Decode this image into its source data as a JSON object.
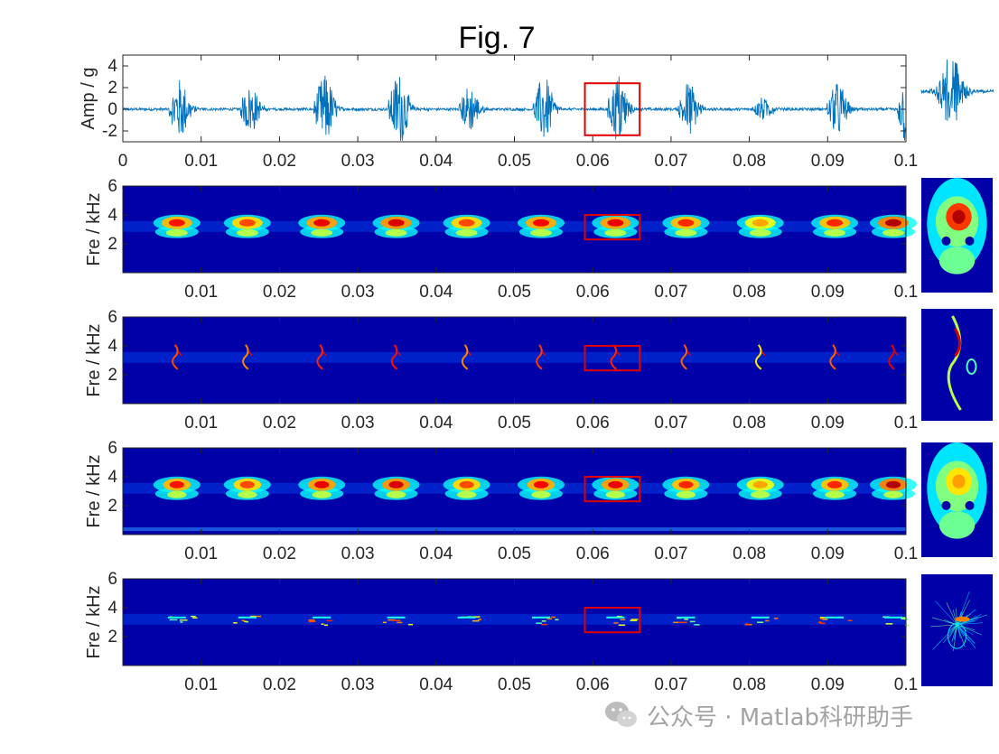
{
  "figure": {
    "title": "Fig. 7",
    "watermark": "公众号 · Matlab科研助手"
  },
  "colors": {
    "signal": "#0072BD",
    "highlight_box": "#E00000",
    "axes": "#262626",
    "background_map": "#0000A8"
  },
  "chart_data": [
    {
      "type": "line",
      "title": "Fig. 7",
      "ylabel": "Amp / g",
      "xlim": [
        0,
        0.1
      ],
      "ylim": [
        -3,
        5
      ],
      "yticks": [
        "-2",
        "0",
        "2",
        "4"
      ],
      "xticks": [
        "0",
        "0.01",
        "0.02",
        "0.03",
        "0.04",
        "0.05",
        "0.06",
        "0.07",
        "0.08",
        "0.09",
        "0.1"
      ],
      "series": [
        {
          "impulse_times": [
            0.0065,
            0.0155,
            0.025,
            0.0345,
            0.0435,
            0.053,
            0.0625,
            0.0715,
            0.081,
            0.0905,
            0.0995
          ],
          "impulse_peaks": [
            2.6,
            2.0,
            3.0,
            3.2,
            2.0,
            2.8,
            3.0,
            2.4,
            1.0,
            2.4,
            3.6
          ],
          "noise_level": 0.25
        }
      ],
      "highlight": {
        "x": [
          0.059,
          0.066
        ],
        "y": [
          -2.4,
          2.4
        ]
      },
      "inset": "zoom of highlighted impulse"
    },
    {
      "type": "heatmap",
      "ylabel": "Fre / kHz",
      "xlim": [
        0,
        0.1
      ],
      "ylim": [
        0,
        6
      ],
      "yticks": [
        "2",
        "4",
        "6"
      ],
      "xticks": [
        "0.01",
        "0.02",
        "0.03",
        "0.04",
        "0.05",
        "0.06",
        "0.07",
        "0.08",
        "0.09",
        "0.1"
      ],
      "band_center_khz": 3.2,
      "style": "blobs",
      "highlight": {
        "x": [
          0.059,
          0.066
        ],
        "y": [
          2.3,
          4.0
        ]
      },
      "inset": "zoom of highlighted region"
    },
    {
      "type": "heatmap",
      "ylabel": "Fre / kHz",
      "xlim": [
        0,
        0.1
      ],
      "ylim": [
        0,
        6
      ],
      "yticks": [
        "2",
        "4",
        "6"
      ],
      "xticks": [
        "0.01",
        "0.02",
        "0.03",
        "0.04",
        "0.05",
        "0.06",
        "0.07",
        "0.08",
        "0.09",
        "0.1"
      ],
      "band_center_khz": 3.2,
      "style": "ridges",
      "highlight": {
        "x": [
          0.059,
          0.066
        ],
        "y": [
          2.3,
          4.0
        ]
      },
      "inset": "zoom of highlighted region"
    },
    {
      "type": "heatmap",
      "ylabel": "Fre / kHz",
      "xlim": [
        0,
        0.1
      ],
      "ylim": [
        0,
        6
      ],
      "yticks": [
        "2",
        "4",
        "6"
      ],
      "xticks": [
        "0.01",
        "0.02",
        "0.03",
        "0.04",
        "0.05",
        "0.06",
        "0.07",
        "0.08",
        "0.09",
        "0.1"
      ],
      "band_center_khz": 3.2,
      "style": "blobs_soft",
      "highlight": {
        "x": [
          0.059,
          0.066
        ],
        "y": [
          2.3,
          4.0
        ]
      },
      "inset": "zoom of highlighted region"
    },
    {
      "type": "heatmap",
      "ylabel": "Fre / kHz",
      "xlim": [
        0,
        0.1
      ],
      "ylim": [
        0,
        6
      ],
      "yticks": [
        "2",
        "4",
        "6"
      ],
      "xticks": [
        "0.01",
        "0.02",
        "0.03",
        "0.04",
        "0.05",
        "0.06",
        "0.07",
        "0.08",
        "0.09",
        "0.1"
      ],
      "band_center_khz": 3.2,
      "style": "sparse",
      "highlight": {
        "x": [
          0.059,
          0.066
        ],
        "y": [
          2.3,
          4.0
        ]
      },
      "inset": "zoom of highlighted region"
    }
  ]
}
